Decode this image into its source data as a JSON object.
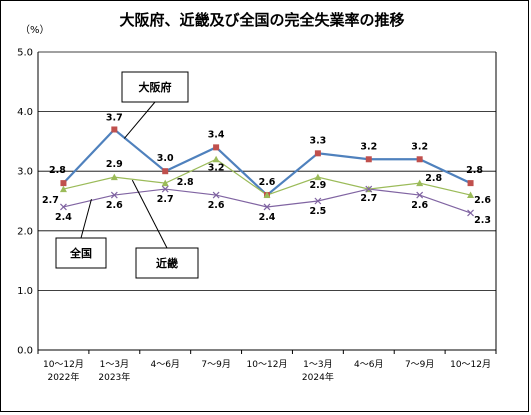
{
  "chart_data": {
    "type": "line",
    "title": "大阪府、近畿及び全国の完全失業率の推移",
    "ylabel": "（%）",
    "ylim": [
      0,
      5
    ],
    "yticks": [
      "0.0",
      "1.0",
      "2.0",
      "3.0",
      "4.0",
      "5.0"
    ],
    "grid": true,
    "categories": [
      "10～12月",
      "1～3月",
      "4～6月",
      "7～9月",
      "10～12月",
      "1～3月",
      "4～6月",
      "7～9月",
      "10～12月"
    ],
    "year_labels": [
      "2022年",
      "2023年",
      "",
      "",
      "",
      "2024年",
      "",
      "",
      ""
    ],
    "series": [
      {
        "name": "大阪府",
        "color": "#4f81bd",
        "marker": "square",
        "marker_color": "#c0504d",
        "values": [
          2.8,
          3.7,
          3.0,
          3.4,
          2.6,
          3.3,
          3.2,
          3.2,
          2.8
        ]
      },
      {
        "name": "全国",
        "color": "#9bbb59",
        "marker": "triangle",
        "marker_color": "#9bbb59",
        "values": [
          2.7,
          2.9,
          2.8,
          3.2,
          2.6,
          2.9,
          2.7,
          2.8,
          2.6
        ]
      },
      {
        "name": "近畿",
        "color": "#8064a2",
        "marker": "x",
        "marker_color": "#8064a2",
        "values": [
          2.4,
          2.6,
          2.7,
          2.6,
          2.4,
          2.5,
          2.7,
          2.6,
          2.3
        ]
      }
    ],
    "data_labels": {
      "大阪府": [
        "2.8",
        "3.7",
        "3.0",
        "3.4",
        "2.6",
        "3.3",
        "3.2",
        "3.2",
        "2.8"
      ],
      "全国": [
        "2.7",
        "2.9",
        "2.8",
        "3.2",
        "",
        "2.9",
        "",
        "2.8",
        "2.6"
      ],
      "近畿": [
        "2.4",
        "2.6",
        "2.7",
        "2.6",
        "2.4",
        "2.5",
        "2.7",
        "2.6",
        "2.3"
      ]
    },
    "callouts": [
      "大阪府",
      "全国",
      "近畿"
    ]
  }
}
